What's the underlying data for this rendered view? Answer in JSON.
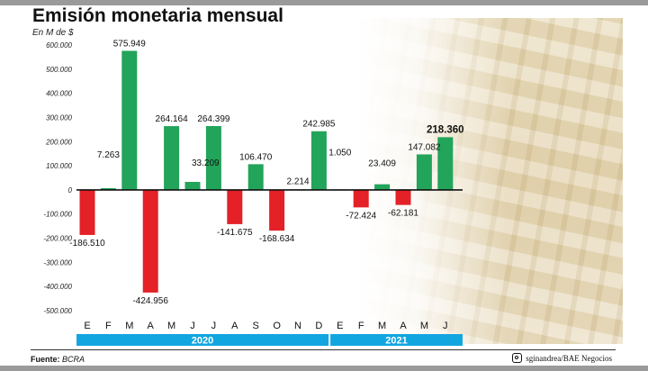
{
  "title": "Emisión monetaria mensual",
  "unit": "En M de $",
  "source_label": "Fuente:",
  "source_value": "BCRA",
  "credit": "sginandrea/BAE Negocios",
  "colors": {
    "positive": "#22a45a",
    "negative": "#e32126",
    "year_band": "#12a6e0",
    "axis": "#111111"
  },
  "chart_data": {
    "type": "bar",
    "title": "Emisión monetaria mensual",
    "ylabel": "En M de $",
    "ylim": [
      -500000,
      600000
    ],
    "yticks": [
      600000,
      500000,
      400000,
      300000,
      200000,
      100000,
      0,
      -100000,
      -200000,
      -300000,
      -400000,
      -500000
    ],
    "ytick_labels": [
      "600.000",
      "500.000",
      "400.000",
      "300.000",
      "200.000",
      "100.000",
      "0",
      "-100.000",
      "-200.000",
      "-300.000",
      "-400.000",
      "-500.000"
    ],
    "categories": [
      "E",
      "F",
      "M",
      "A",
      "M",
      "J",
      "J",
      "A",
      "S",
      "O",
      "N",
      "D",
      "E",
      "F",
      "M",
      "A",
      "M",
      "J"
    ],
    "values": [
      -186510,
      7263,
      575949,
      -424956,
      264164,
      33209,
      264399,
      -141675,
      106470,
      -168634,
      2214,
      242985,
      1050,
      -72424,
      23409,
      -62181,
      147082,
      218360
    ],
    "labels": [
      "-186.510",
      "7.263",
      "575.949",
      "-424.956",
      "264.164",
      "33.209",
      "264.399",
      "-141.675",
      "106.470",
      "-168.634",
      "2.214",
      "242.985",
      "1.050",
      "-72.424",
      "23.409",
      "-62.181",
      "147.082",
      "218.360"
    ],
    "groups": [
      {
        "name": "2020",
        "start": 0,
        "end": 11
      },
      {
        "name": "2021",
        "start": 12,
        "end": 17
      }
    ],
    "highlight_last": true
  }
}
